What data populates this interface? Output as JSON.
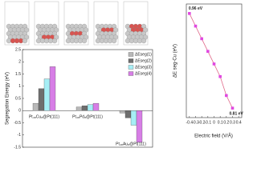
{
  "chart_data": [
    {
      "type": "bar",
      "y_label": "Segregation Energy (eV)",
      "categories": [
        "Pt₄₈Cu₈@Pt(111)",
        "Pt₄₈Pd₈@Pt(111)",
        "Pt₄₈Au₈@Pt(111)"
      ],
      "series": [
        {
          "name": "ΔEseg(1)",
          "color": "#b8b8b8",
          "values": [
            0.3,
            0.15,
            -0.1
          ]
        },
        {
          "name": "ΔEseg(2)",
          "color": "#6e6e6e",
          "values": [
            0.9,
            0.2,
            -0.3
          ]
        },
        {
          "name": "ΔEseg(3)",
          "color": "#a6eef5",
          "values": [
            1.3,
            0.25,
            -0.6
          ]
        },
        {
          "name": "ΔEseg(4)",
          "color": "#d77ee6",
          "values": [
            1.8,
            0.3,
            -1.3
          ]
        }
      ],
      "ylim": [
        -1.5,
        2.5
      ],
      "yticks": [
        -1.5,
        -1.0,
        -0.5,
        0.0,
        0.5,
        1.0,
        1.5,
        2.0,
        2.5
      ],
      "legend": "upper-right"
    },
    {
      "type": "line",
      "x_label": "Electric field (V/Å)",
      "y_label": "ΔE seg-Cu (eV)",
      "x": [
        -0.4,
        -0.3,
        -0.2,
        -0.1,
        0.0,
        0.1,
        0.2,
        0.3
      ],
      "series": [
        {
          "color": "#e048e0",
          "values": [
            0.96,
            0.94,
            0.92,
            0.9,
            0.88,
            0.86,
            0.83,
            0.81
          ]
        }
      ],
      "line_color": "#e06a8a",
      "xlim": [
        -0.45,
        0.45
      ],
      "xticks": [
        -0.4,
        -0.3,
        -0.2,
        -0.1,
        0.0,
        0.1,
        0.2,
        0.3,
        0.4
      ],
      "ylim": [
        0.795,
        0.975
      ],
      "annotations": [
        "0.96 eV",
        "0.81 eV"
      ]
    }
  ]
}
